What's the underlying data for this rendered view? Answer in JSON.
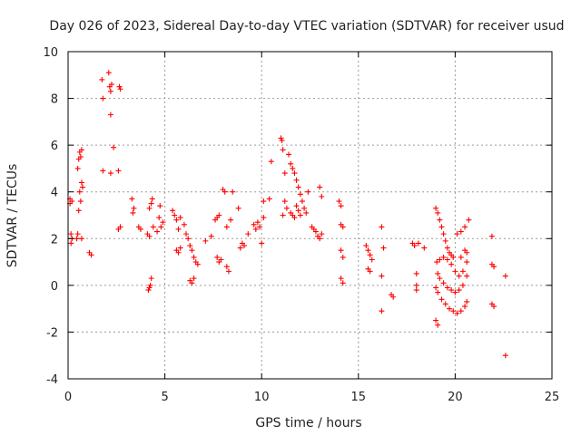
{
  "chart_data": {
    "type": "scatter",
    "title": "Day 026 of 2023, Sidereal Day-to-day VTEC variation (SDTVAR) for receiver usud",
    "xlabel": "GPS time / hours",
    "ylabel": "SDTVAR / TECUs",
    "xlim": [
      0,
      25
    ],
    "ylim": [
      -4,
      10
    ],
    "xticks": [
      "0",
      "5",
      "10",
      "15",
      "20",
      "25"
    ],
    "yticks": [
      "-4",
      "-2",
      "0",
      "2",
      "4",
      "6",
      "8",
      "10"
    ],
    "grid": true,
    "marker": "plus",
    "color": "#ff0000",
    "series": [
      {
        "name": "SDTVAR",
        "points": [
          [
            0.1,
            3.5
          ],
          [
            0.1,
            3.7
          ],
          [
            0.15,
            2.2
          ],
          [
            0.15,
            1.8
          ],
          [
            0.2,
            3.6
          ],
          [
            0.2,
            2.0
          ],
          [
            0.45,
            2.0
          ],
          [
            0.5,
            2.2
          ],
          [
            0.5,
            5.0
          ],
          [
            0.55,
            5.4
          ],
          [
            0.55,
            3.2
          ],
          [
            0.6,
            5.7
          ],
          [
            0.6,
            4.0
          ],
          [
            0.65,
            5.5
          ],
          [
            0.65,
            3.6
          ],
          [
            0.7,
            5.8
          ],
          [
            0.7,
            4.4
          ],
          [
            0.7,
            2.0
          ],
          [
            0.75,
            4.2
          ],
          [
            1.1,
            1.4
          ],
          [
            1.2,
            1.3
          ],
          [
            1.75,
            8.8
          ],
          [
            1.8,
            8.0
          ],
          [
            1.8,
            4.9
          ],
          [
            2.1,
            9.1
          ],
          [
            2.15,
            8.5
          ],
          [
            2.2,
            8.3
          ],
          [
            2.25,
            8.6
          ],
          [
            2.2,
            4.8
          ],
          [
            2.2,
            7.3
          ],
          [
            2.35,
            5.9
          ],
          [
            2.6,
            4.9
          ],
          [
            2.65,
            8.5
          ],
          [
            2.7,
            8.4
          ],
          [
            2.6,
            2.4
          ],
          [
            2.7,
            2.5
          ],
          [
            3.3,
            3.7
          ],
          [
            3.35,
            3.1
          ],
          [
            3.4,
            3.3
          ],
          [
            3.65,
            2.5
          ],
          [
            3.75,
            2.4
          ],
          [
            4.15,
            -0.2
          ],
          [
            4.2,
            -0.1
          ],
          [
            4.25,
            0.0
          ],
          [
            4.3,
            0.3
          ],
          [
            4.1,
            2.2
          ],
          [
            4.2,
            3.3
          ],
          [
            4.3,
            3.5
          ],
          [
            4.35,
            3.7
          ],
          [
            4.4,
            2.5
          ],
          [
            4.2,
            2.1
          ],
          [
            4.6,
            2.3
          ],
          [
            4.7,
            2.9
          ],
          [
            4.75,
            3.4
          ],
          [
            4.8,
            2.5
          ],
          [
            4.9,
            2.7
          ],
          [
            5.4,
            3.2
          ],
          [
            5.5,
            3.0
          ],
          [
            5.6,
            2.8
          ],
          [
            5.7,
            2.4
          ],
          [
            5.8,
            2.9
          ],
          [
            5.6,
            1.5
          ],
          [
            5.7,
            1.4
          ],
          [
            5.8,
            1.6
          ],
          [
            6.0,
            2.6
          ],
          [
            6.1,
            2.2
          ],
          [
            6.2,
            2.0
          ],
          [
            6.3,
            1.7
          ],
          [
            6.4,
            1.5
          ],
          [
            6.3,
            0.2
          ],
          [
            6.4,
            0.1
          ],
          [
            6.5,
            0.3
          ],
          [
            6.5,
            1.2
          ],
          [
            6.6,
            1.0
          ],
          [
            6.7,
            0.9
          ],
          [
            7.1,
            1.9
          ],
          [
            7.4,
            2.1
          ],
          [
            7.6,
            2.8
          ],
          [
            7.7,
            2.9
          ],
          [
            7.8,
            3.0
          ],
          [
            7.7,
            1.2
          ],
          [
            7.8,
            1.0
          ],
          [
            7.9,
            1.1
          ],
          [
            8.0,
            4.1
          ],
          [
            8.1,
            4.0
          ],
          [
            8.2,
            0.8
          ],
          [
            8.3,
            0.6
          ],
          [
            8.2,
            2.5
          ],
          [
            8.4,
            2.8
          ],
          [
            8.5,
            4.0
          ],
          [
            8.8,
            3.3
          ],
          [
            8.9,
            1.6
          ],
          [
            9.0,
            1.8
          ],
          [
            9.1,
            1.7
          ],
          [
            9.3,
            2.2
          ],
          [
            9.6,
            2.6
          ],
          [
            9.7,
            2.4
          ],
          [
            9.8,
            2.7
          ],
          [
            9.9,
            2.5
          ],
          [
            10.0,
            1.8
          ],
          [
            10.1,
            3.6
          ],
          [
            10.1,
            2.9
          ],
          [
            10.4,
            3.7
          ],
          [
            10.5,
            5.3
          ],
          [
            11.0,
            6.3
          ],
          [
            11.05,
            6.2
          ],
          [
            11.1,
            5.8
          ],
          [
            11.2,
            4.8
          ],
          [
            11.1,
            3.0
          ],
          [
            11.2,
            3.6
          ],
          [
            11.3,
            3.3
          ],
          [
            11.4,
            5.6
          ],
          [
            11.5,
            5.2
          ],
          [
            11.6,
            5.0
          ],
          [
            11.7,
            4.8
          ],
          [
            11.8,
            4.5
          ],
          [
            11.9,
            4.2
          ],
          [
            12.0,
            3.9
          ],
          [
            12.1,
            3.6
          ],
          [
            11.5,
            3.1
          ],
          [
            11.6,
            3.0
          ],
          [
            11.7,
            2.9
          ],
          [
            11.8,
            3.4
          ],
          [
            11.9,
            3.2
          ],
          [
            12.0,
            3.0
          ],
          [
            12.2,
            3.3
          ],
          [
            12.3,
            3.1
          ],
          [
            12.4,
            4.0
          ],
          [
            12.6,
            2.5
          ],
          [
            12.7,
            2.4
          ],
          [
            12.8,
            2.3
          ],
          [
            12.9,
            2.1
          ],
          [
            13.0,
            4.2
          ],
          [
            13.1,
            3.8
          ],
          [
            13.0,
            2.0
          ],
          [
            13.1,
            2.2
          ],
          [
            14.0,
            3.6
          ],
          [
            14.1,
            3.4
          ],
          [
            14.1,
            2.6
          ],
          [
            14.2,
            2.5
          ],
          [
            14.1,
            1.5
          ],
          [
            14.2,
            1.2
          ],
          [
            14.1,
            0.3
          ],
          [
            14.2,
            0.1
          ],
          [
            15.4,
            1.7
          ],
          [
            15.5,
            1.5
          ],
          [
            15.6,
            1.3
          ],
          [
            15.7,
            1.1
          ],
          [
            15.5,
            0.7
          ],
          [
            15.6,
            0.6
          ],
          [
            16.2,
            2.5
          ],
          [
            16.3,
            1.6
          ],
          [
            16.2,
            0.4
          ],
          [
            16.2,
            -1.1
          ],
          [
            16.7,
            -0.4
          ],
          [
            16.8,
            -0.5
          ],
          [
            17.8,
            1.8
          ],
          [
            17.9,
            1.7
          ],
          [
            18.1,
            1.8
          ],
          [
            18.0,
            0.5
          ],
          [
            18.0,
            0.0
          ],
          [
            18.0,
            -0.2
          ],
          [
            18.4,
            1.6
          ],
          [
            19.0,
            3.3
          ],
          [
            19.1,
            3.1
          ],
          [
            19.2,
            2.8
          ],
          [
            19.3,
            2.5
          ],
          [
            19.4,
            2.2
          ],
          [
            19.5,
            1.9
          ],
          [
            19.6,
            1.6
          ],
          [
            19.7,
            1.4
          ],
          [
            19.8,
            1.3
          ],
          [
            19.9,
            1.2
          ],
          [
            19.05,
            1.0
          ],
          [
            19.2,
            1.1
          ],
          [
            19.4,
            1.2
          ],
          [
            19.6,
            1.1
          ],
          [
            19.8,
            0.9
          ],
          [
            20.0,
            0.6
          ],
          [
            20.2,
            0.4
          ],
          [
            20.4,
            0.6
          ],
          [
            20.6,
            1.0
          ],
          [
            19.1,
            0.5
          ],
          [
            19.2,
            0.3
          ],
          [
            19.4,
            0.1
          ],
          [
            19.6,
            -0.1
          ],
          [
            19.8,
            -0.2
          ],
          [
            20.0,
            -0.3
          ],
          [
            20.2,
            -0.2
          ],
          [
            20.4,
            0.0
          ],
          [
            20.6,
            0.4
          ],
          [
            19.1,
            -0.3
          ],
          [
            19.3,
            -0.6
          ],
          [
            19.5,
            -0.8
          ],
          [
            19.7,
            -1.0
          ],
          [
            19.9,
            -1.1
          ],
          [
            20.1,
            -1.2
          ],
          [
            20.3,
            -1.1
          ],
          [
            20.5,
            -0.9
          ],
          [
            20.6,
            -0.7
          ],
          [
            19.0,
            -1.5
          ],
          [
            19.1,
            -1.7
          ],
          [
            19.0,
            -0.1
          ],
          [
            20.1,
            2.2
          ],
          [
            20.3,
            2.3
          ],
          [
            20.5,
            2.5
          ],
          [
            20.7,
            2.8
          ],
          [
            20.5,
            1.5
          ],
          [
            20.3,
            1.2
          ],
          [
            20.6,
            1.4
          ],
          [
            21.9,
            2.1
          ],
          [
            21.9,
            0.9
          ],
          [
            22.0,
            0.8
          ],
          [
            21.9,
            -0.8
          ],
          [
            22.0,
            -0.9
          ],
          [
            22.6,
            0.4
          ],
          [
            22.6,
            -3.0
          ]
        ]
      }
    ]
  }
}
